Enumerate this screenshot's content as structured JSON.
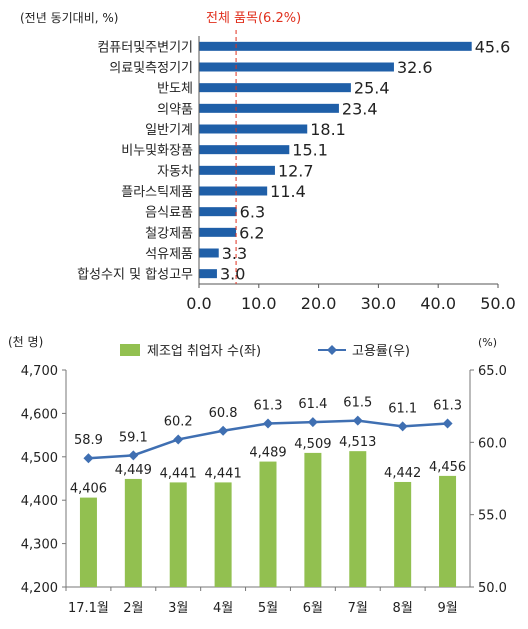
{
  "chart_data": [
    {
      "type": "bar",
      "orientation": "horizontal",
      "unit_label": "(전년 동기대비, %)",
      "reference_label": "전체 품목(6.2%)",
      "reference_value": 6.2,
      "reference_color": "#e0301e",
      "bar_color": "#1f5fa8",
      "categories": [
        "컴퓨터및주변기기",
        "의료및측정기기",
        "반도체",
        "의약품",
        "일반기계",
        "비누및화장품",
        "자동차",
        "플라스틱제품",
        "음식료품",
        "철강제품",
        "석유제품",
        "합성수지 및 합성고무"
      ],
      "values": [
        45.6,
        32.6,
        25.4,
        23.4,
        18.1,
        15.1,
        12.7,
        11.4,
        6.3,
        6.2,
        3.3,
        3.0
      ],
      "value_labels": [
        "45.6",
        "32.6",
        "25.4",
        "23.4",
        "18.1",
        "15.1",
        "12.7",
        "11.4",
        "6.3",
        "6.2",
        "3.3",
        "3.0"
      ],
      "xlim": [
        0,
        50
      ],
      "xticks": [
        "0.0",
        "10.0",
        "20.0",
        "30.0",
        "40.0",
        "50.0"
      ]
    },
    {
      "type": "bar+line",
      "left_unit": "(천 명)",
      "right_unit": "(%)",
      "categories": [
        "17.1월",
        "2월",
        "3월",
        "4월",
        "5월",
        "6월",
        "7월",
        "8월",
        "9월"
      ],
      "series": [
        {
          "name": "제조업 취업자 수(좌)",
          "type": "bar",
          "axis": "left",
          "color": "#92c050",
          "values": [
            4406,
            4449,
            4441,
            4441,
            4489,
            4509,
            4513,
            4442,
            4456
          ],
          "labels": [
            "4,406",
            "4,449",
            "4,441",
            "4,441",
            "4,489",
            "4,509",
            "4,513",
            "4,442",
            "4,456"
          ]
        },
        {
          "name": "고용률(우)",
          "type": "line",
          "axis": "right",
          "color": "#3f6fb2",
          "values": [
            58.9,
            59.1,
            60.2,
            60.8,
            61.3,
            61.4,
            61.5,
            61.1,
            61.3
          ],
          "labels": [
            "58.9",
            "59.1",
            "60.2",
            "60.8",
            "61.3",
            "61.4",
            "61.5",
            "61.1",
            "61.3"
          ]
        }
      ],
      "ylim_left": [
        4200,
        4700
      ],
      "yticks_left": [
        "4,200",
        "4,300",
        "4,400",
        "4,500",
        "4,600",
        "4,700"
      ],
      "ylim_right": [
        50,
        65
      ],
      "yticks_right": [
        "50.0",
        "55.0",
        "60.0",
        "65.0"
      ]
    }
  ]
}
